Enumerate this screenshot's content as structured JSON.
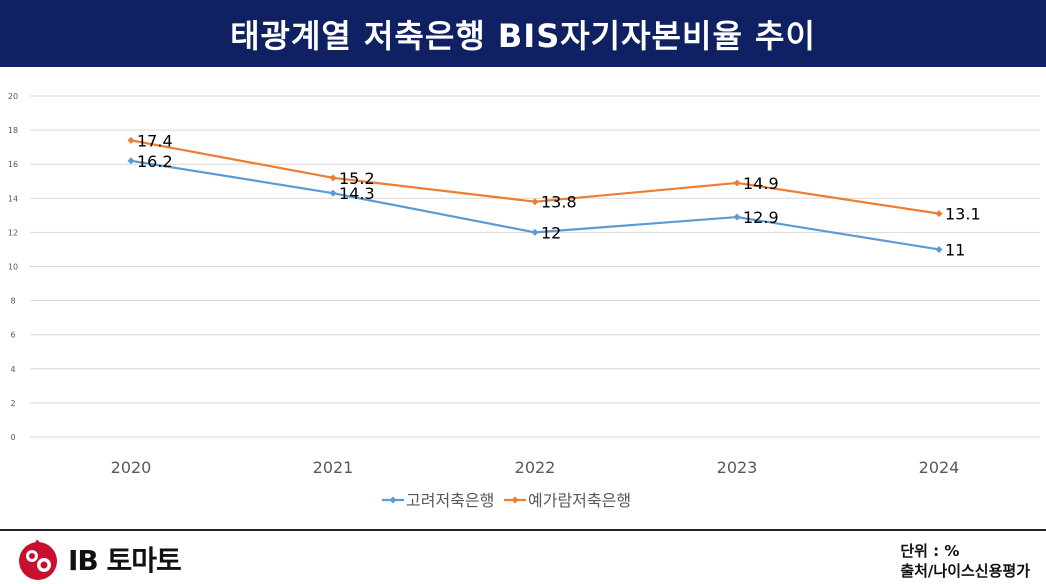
{
  "header": {
    "title": "태광계열 저축은행 BIS자기자본비율 추이"
  },
  "chart_data": {
    "type": "line",
    "title": "",
    "xlabel": "",
    "ylabel": "",
    "categories": [
      "2020",
      "2021",
      "2022",
      "2023",
      "2024"
    ],
    "ylim": [
      0,
      20
    ],
    "yticks": [
      0,
      2,
      4,
      6,
      8,
      10,
      12,
      14,
      16,
      18,
      20
    ],
    "grid": true,
    "legend_position": "bottom",
    "series": [
      {
        "name": "고려저축은행",
        "color": "#5b9bd5",
        "values": [
          16.2,
          14.3,
          12,
          12.9,
          11
        ],
        "labels": [
          "16.2",
          "14.3",
          "12",
          "12.9",
          "11"
        ]
      },
      {
        "name": "예가람저축은행",
        "color": "#ed7d31",
        "values": [
          17.4,
          15.2,
          13.8,
          14.9,
          13.1
        ],
        "labels": [
          "17.4",
          "15.2",
          "13.8",
          "14.9",
          "13.1"
        ]
      }
    ]
  },
  "footer": {
    "unit": "단위 : %",
    "source": "출처/나이스신용평가",
    "logo_text": "IB 토마토"
  }
}
